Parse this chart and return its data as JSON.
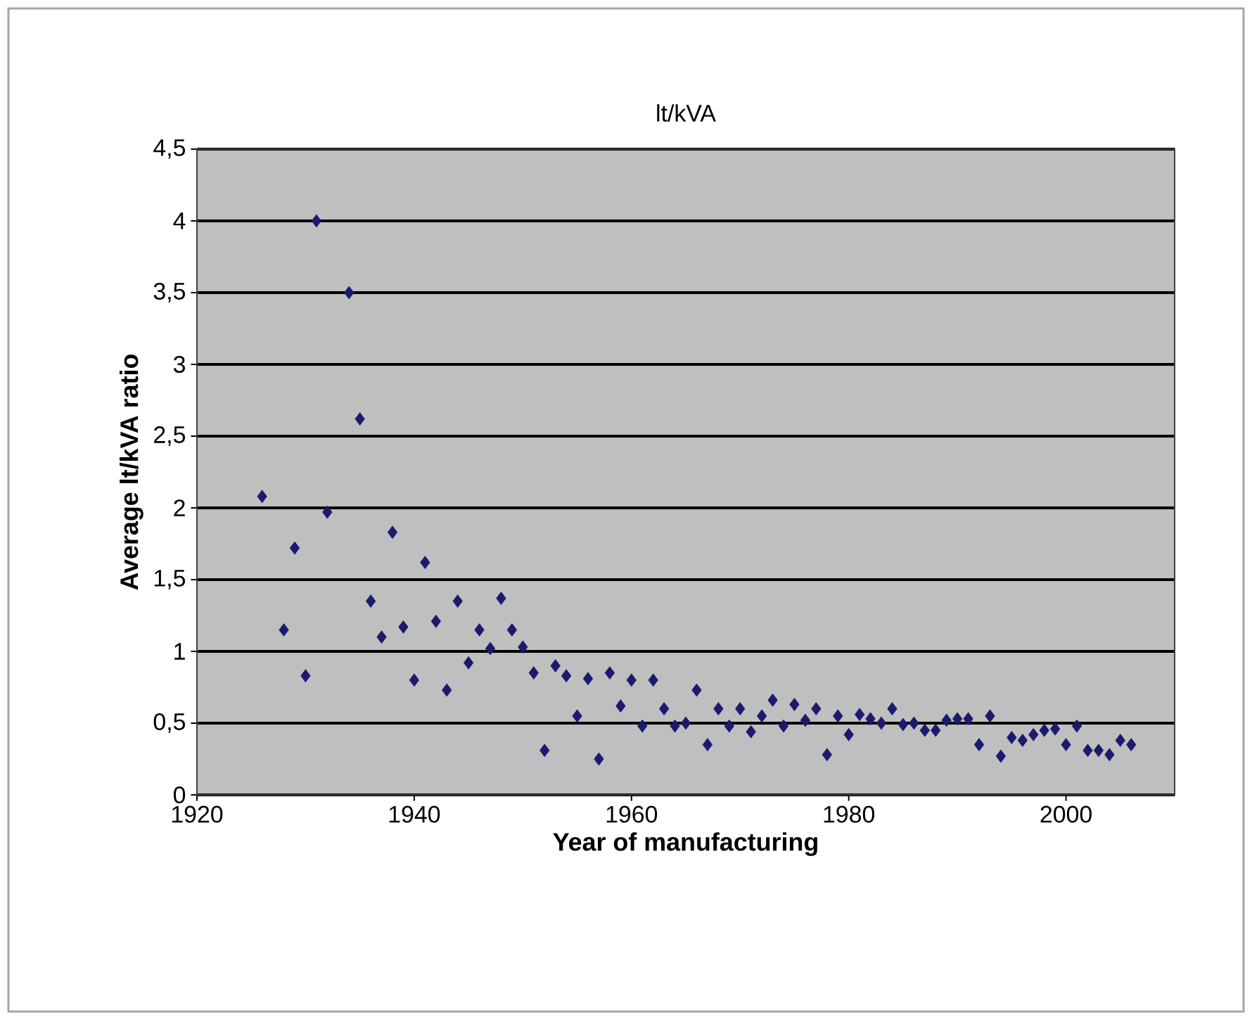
{
  "chart_data": {
    "type": "scatter",
    "title": "lt/kVA",
    "xlabel": "Year of manufacturing",
    "ylabel": "Average lt/kVA ratio",
    "x": [
      1926,
      1928,
      1929,
      1930,
      1931,
      1932,
      1934,
      1935,
      1936,
      1937,
      1938,
      1939,
      1940,
      1941,
      1942,
      1943,
      1944,
      1945,
      1946,
      1947,
      1948,
      1949,
      1950,
      1951,
      1952,
      1953,
      1954,
      1955,
      1956,
      1957,
      1958,
      1959,
      1960,
      1961,
      1962,
      1963,
      1964,
      1965,
      1966,
      1967,
      1968,
      1969,
      1970,
      1971,
      1972,
      1973,
      1974,
      1975,
      1976,
      1977,
      1978,
      1979,
      1980,
      1981,
      1982,
      1983,
      1984,
      1985,
      1986,
      1987,
      1988,
      1989,
      1990,
      1991,
      1992,
      1993,
      1994,
      1995,
      1996,
      1997,
      1998,
      1999,
      2000,
      2001,
      2002,
      2003,
      2004,
      2005,
      2006
    ],
    "series": [
      {
        "color": "#1a1a6e",
        "values": [
          2.08,
          1.15,
          1.72,
          0.83,
          4.0,
          1.97,
          3.5,
          2.62,
          1.35,
          1.1,
          1.83,
          1.17,
          0.8,
          1.62,
          1.21,
          0.73,
          1.35,
          0.92,
          1.15,
          1.02,
          1.37,
          1.15,
          1.03,
          0.85,
          0.31,
          0.9,
          0.83,
          0.55,
          0.81,
          0.25,
          0.85,
          0.62,
          0.8,
          0.48,
          0.8,
          0.6,
          0.48,
          0.5,
          0.73,
          0.35,
          0.6,
          0.48,
          0.6,
          0.44,
          0.55,
          0.66,
          0.48,
          0.63,
          0.52,
          0.6,
          0.28,
          0.55,
          0.42,
          0.56,
          0.53,
          0.5,
          0.6,
          0.49,
          0.5,
          0.45,
          0.45,
          0.52,
          0.53,
          0.53,
          0.35,
          0.55,
          0.27,
          0.4,
          0.38,
          0.42,
          0.45,
          0.46,
          0.35,
          0.48,
          0.31,
          0.31,
          0.28,
          0.38,
          0.35
        ]
      }
    ],
    "xlim": [
      1920,
      2010
    ],
    "xticks": [
      1920,
      1940,
      1960,
      1980,
      2000
    ],
    "ylim": [
      0,
      4.5
    ],
    "yticks": [
      0,
      {
        "value": 0.5,
        "label": "0,5"
      },
      1,
      {
        "value": 1.5,
        "label": "1,5"
      },
      2,
      {
        "value": 2.5,
        "label": "2,5"
      },
      3,
      {
        "value": 3.5,
        "label": "3,5"
      },
      4,
      {
        "value": 4.5,
        "label": "4,5"
      }
    ],
    "grid": "y",
    "marker": "diamond"
  }
}
